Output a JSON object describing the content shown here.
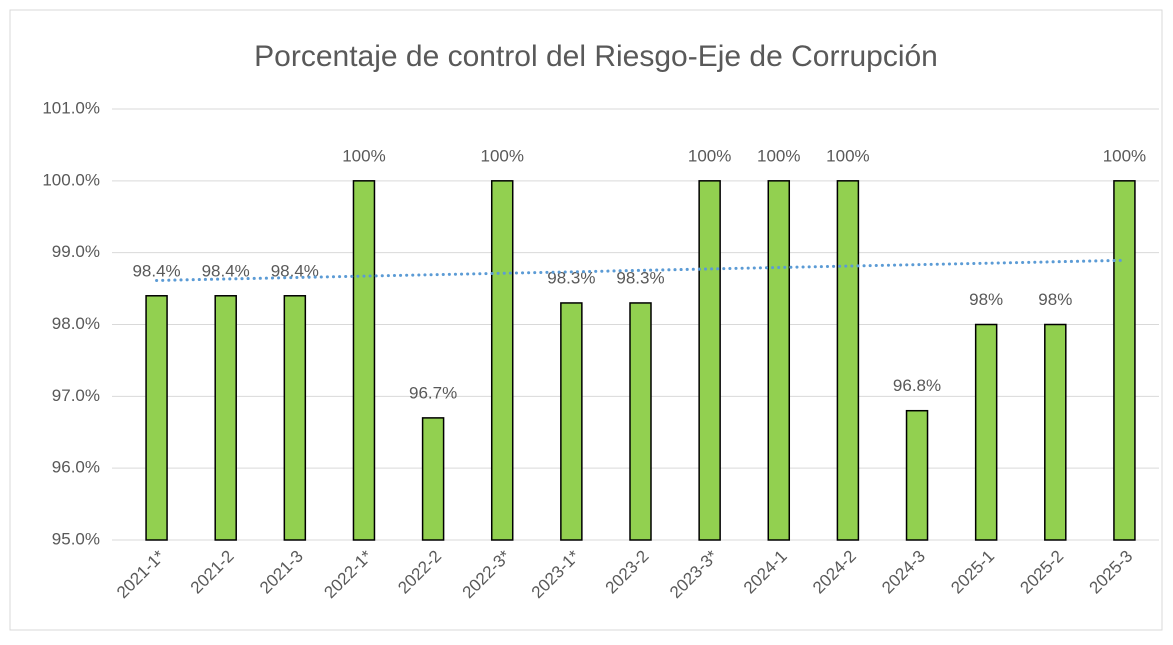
{
  "chart_data": {
    "type": "bar",
    "title": "Porcentaje de control del Riesgo-Eje de Corrupción",
    "categories": [
      "2021-1*",
      "2021-2",
      "2021-3",
      "2022-1*",
      "2022-2",
      "2022-3*",
      "2023-1*",
      "2023-2",
      "2023-3*",
      "2024-1",
      "2024-2",
      "2024-3",
      "2025-1",
      "2025-2",
      "2025-3"
    ],
    "values": [
      98.4,
      98.4,
      98.4,
      100,
      96.7,
      100,
      98.3,
      98.3,
      100,
      100,
      100,
      96.8,
      98,
      98,
      100
    ],
    "value_labels": [
      "98.4%",
      "98.4%",
      "98.4%",
      "100%",
      "96.7%",
      "100%",
      "98.3%",
      "98.3%",
      "100%",
      "100%",
      "100%",
      "96.8%",
      "98%",
      "98%",
      "100%"
    ],
    "color": "#92d050",
    "ylim": [
      95,
      101
    ],
    "yticks": [
      {
        "value": 95,
        "label": "95.0%"
      },
      {
        "value": 96,
        "label": "96.0%"
      },
      {
        "value": 97,
        "label": "97.0%"
      },
      {
        "value": 98,
        "label": "98.0%"
      },
      {
        "value": 99,
        "label": "99.0%"
      },
      {
        "value": 100,
        "label": "100.0%"
      },
      {
        "value": 101,
        "label": "101.0%"
      }
    ],
    "grid": true,
    "trendline": "linear",
    "trendline_color": "#5b9bd5"
  }
}
